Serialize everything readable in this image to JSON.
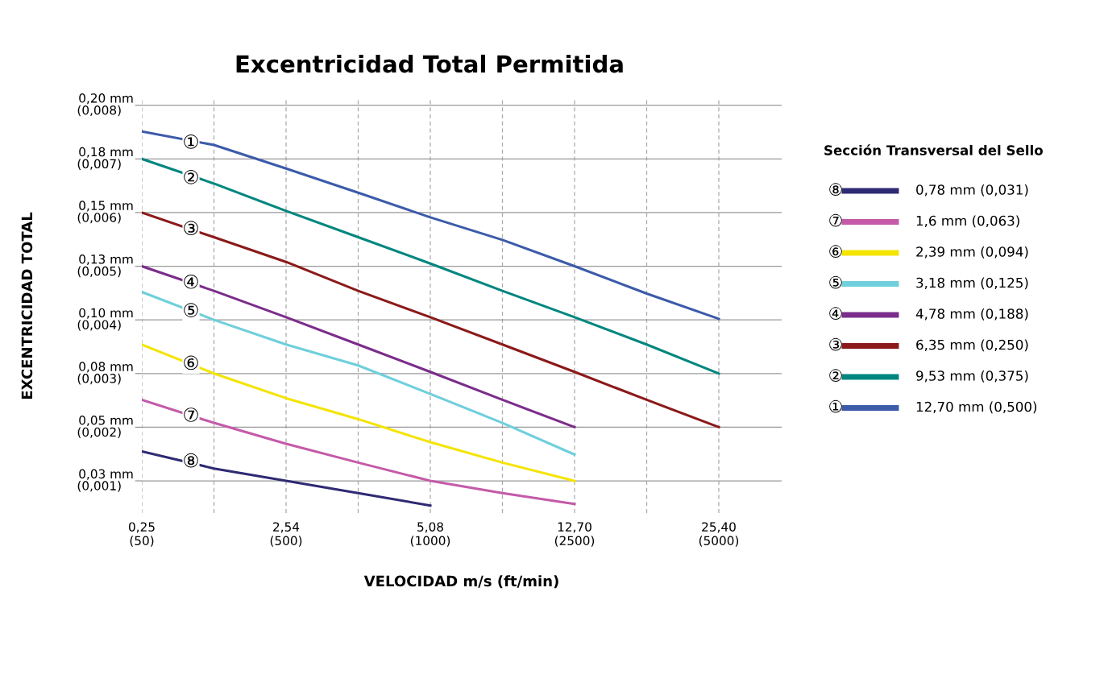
{
  "chart_data": {
    "type": "line",
    "title": "Excentricidad Total Permitida",
    "xlabel": "VELOCIDAD m/s (ft/min)",
    "ylabel": "EXCENTRICIDAD TOTAL",
    "legend_title": "Sección Transversal del Sello",
    "categories": [
      "0,25\n(50)",
      null,
      "2,54\n(500)",
      null,
      "5,08\n(1000)",
      null,
      "12,70\n(2500)",
      null,
      "25,40\n(5000)"
    ],
    "ylim": [
      0.0004,
      0.0081
    ],
    "yticks": [
      {
        "value": 0.001,
        "label": "(0,001)"
      },
      {
        "value": 0.002,
        "label": "(0,002)"
      },
      {
        "value": 0.003,
        "label": "(0,003)"
      },
      {
        "value": 0.004,
        "label": "(0,004)"
      },
      {
        "value": 0.005,
        "label": "(0,005)"
      },
      {
        "value": 0.006,
        "label": "(0,006)"
      },
      {
        "value": 0.007,
        "label": "(0,007)"
      },
      {
        "value": 0.008,
        "label": "(0,008)"
      }
    ],
    "y2lim": [
      0.0102,
      0.2057
    ],
    "y2ticks": [
      {
        "value": 0.0254,
        "label": "0,03 mm"
      },
      {
        "value": 0.0508,
        "label": "0,05 mm"
      },
      {
        "value": 0.0762,
        "label": "0,08 mm"
      },
      {
        "value": 0.1016,
        "label": "0,10 mm"
      },
      {
        "value": 0.127,
        "label": "0,13 mm"
      },
      {
        "value": 0.1524,
        "label": "0,15 mm"
      },
      {
        "value": 0.1778,
        "label": "0,18 mm"
      },
      {
        "value": 0.2032,
        "label": "0,20 mm"
      }
    ],
    "grid": true,
    "legend": "right",
    "marker": "none",
    "line_style": "solid",
    "series": [
      {
        "name": "0,78 mm (0,031)",
        "color": "#2e2a73",
        "values": [
          0.00155,
          0.00123,
          0.001,
          0.00077,
          0.00054,
          null,
          null,
          null,
          null
        ]
      },
      {
        "name": "1,6 mm (0,063)",
        "color": "#c45aa8",
        "values": [
          0.00251,
          0.00208,
          0.00169,
          0.00134,
          0.001,
          0.00077,
          0.00057,
          null,
          null
        ]
      },
      {
        "name": "2,39 mm (0,094)",
        "color": "#f4e400",
        "values": [
          0.00354,
          0.003,
          0.00254,
          0.00215,
          0.00172,
          0.00134,
          0.001,
          null,
          null
        ]
      },
      {
        "name": "3,18 mm (0,125)",
        "color": "#6fcfdc",
        "values": [
          0.00452,
          0.004,
          0.00354,
          0.00315,
          0.00262,
          0.00208,
          0.00149,
          null,
          null
        ]
      },
      {
        "name": "4,78 mm (0,188)",
        "color": "#7b2d8b",
        "values": [
          0.005,
          0.00454,
          0.00405,
          0.00354,
          0.00303,
          0.00251,
          0.002,
          null,
          null
        ]
      },
      {
        "name": "6,35 mm (0,250)",
        "color": "#8b1a1a",
        "values": [
          0.006,
          0.00554,
          0.00508,
          0.00454,
          0.00405,
          0.00354,
          0.00303,
          0.00251,
          0.002
        ]
      },
      {
        "name": "9,53 mm (0,375)",
        "color": "#00867f",
        "values": [
          0.007,
          0.00654,
          0.00603,
          0.00554,
          0.00505,
          0.00454,
          0.00405,
          0.00354,
          0.003
        ]
      },
      {
        "name": "12,70 mm (0,500)",
        "color": "#3c5ba9",
        "values": [
          0.00751,
          0.00726,
          0.00682,
          0.00637,
          0.00591,
          0.00549,
          0.005,
          0.00449,
          0.00402
        ]
      }
    ],
    "annotations": [
      {
        "text": "⑧",
        "y": 0.00135
      },
      {
        "text": "⑦",
        "y": 0.0022
      },
      {
        "text": "⑥",
        "y": 0.00317
      },
      {
        "text": "⑤",
        "y": 0.00415
      },
      {
        "text": "④",
        "y": 0.00468
      },
      {
        "text": "③",
        "y": 0.00568
      },
      {
        "text": "②",
        "y": 0.00663
      },
      {
        "text": "①",
        "y": 0.00729
      }
    ]
  }
}
